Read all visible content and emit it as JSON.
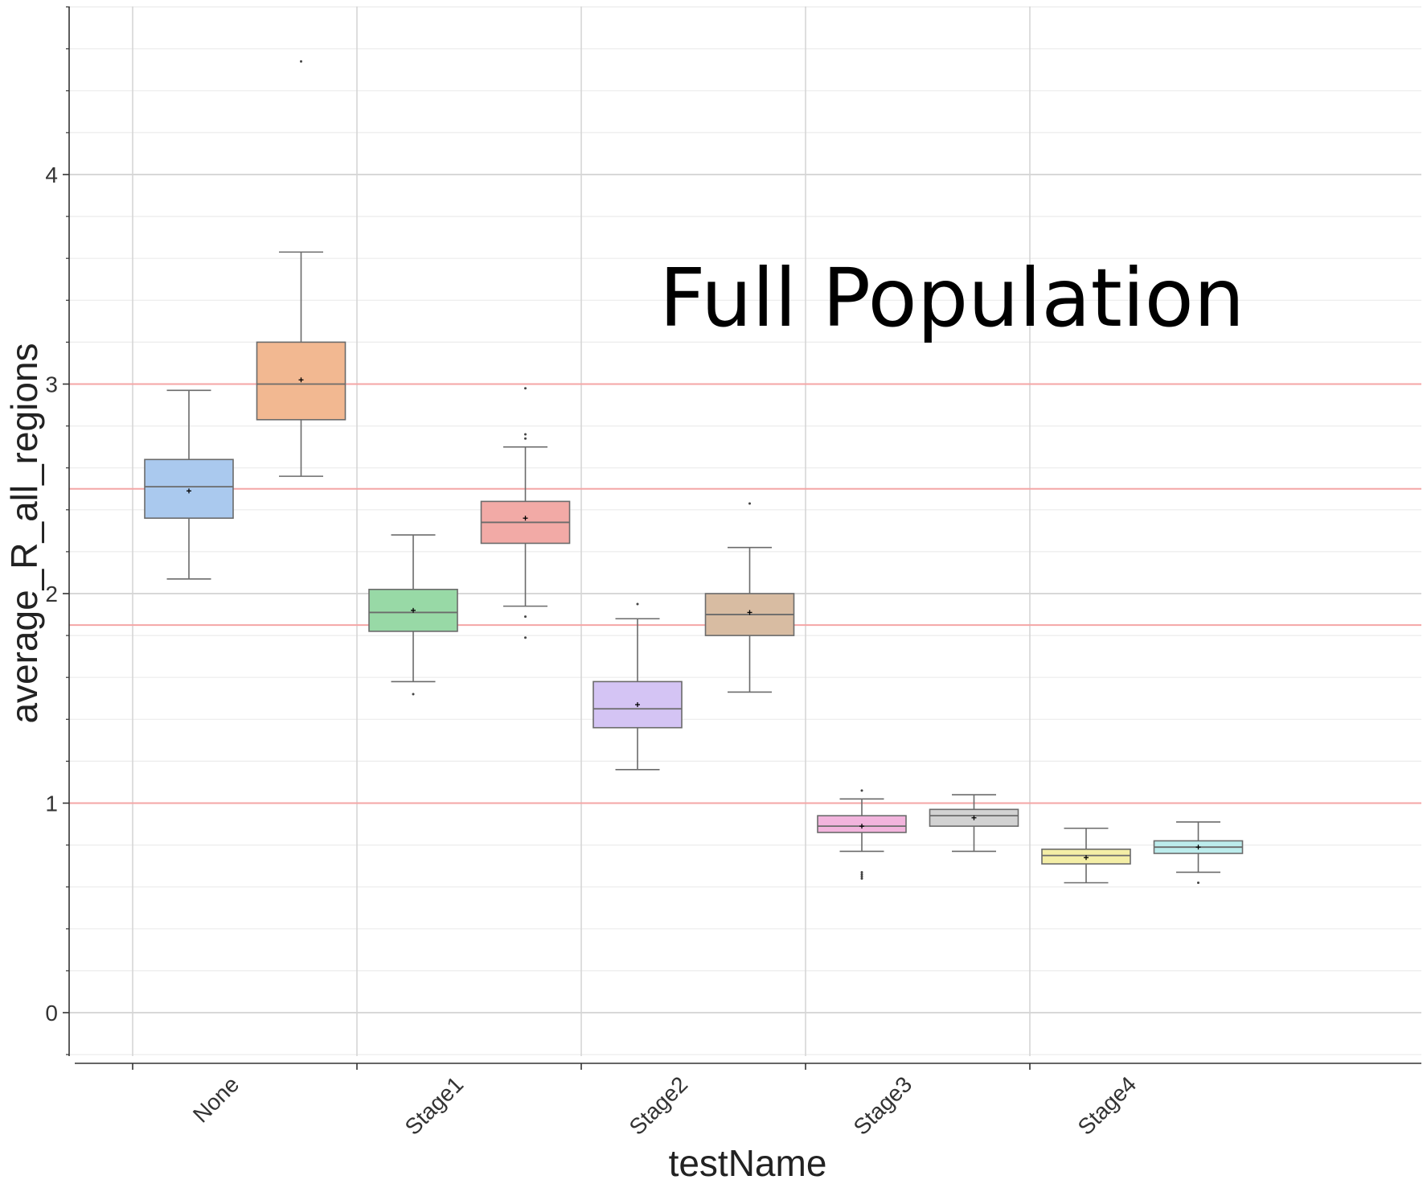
{
  "chart_data": {
    "type": "box",
    "annotation": "Full Population",
    "xlabel": "testName",
    "ylabel": "average_R_all_regions",
    "categories": [
      "None",
      "Stage1",
      "Stage2",
      "Stage3",
      "Stage4"
    ],
    "y_ticks": [
      0,
      1,
      2,
      3,
      4
    ],
    "ylim": [
      -0.2,
      4.8
    ],
    "grid": true,
    "reference_lines": [
      1.0,
      1.85,
      2.5,
      3.0
    ],
    "reference_line_color": "#f4a6a6",
    "boxes": [
      {
        "category": "None",
        "color": "#aac9ee",
        "whisker_low": 2.07,
        "q1": 2.36,
        "median": 2.51,
        "q3": 2.64,
        "whisker_high": 2.97,
        "mean": 2.49,
        "outliers": []
      },
      {
        "category": "None",
        "color": "#f2b891",
        "whisker_low": 2.56,
        "q1": 2.83,
        "median": 3.0,
        "q3": 3.2,
        "whisker_high": 3.63,
        "mean": 3.02,
        "outliers": [
          4.54
        ]
      },
      {
        "category": "Stage1",
        "color": "#98d9a6",
        "whisker_low": 1.58,
        "q1": 1.82,
        "median": 1.91,
        "q3": 2.02,
        "whisker_high": 2.28,
        "mean": 1.92,
        "outliers": [
          1.52
        ]
      },
      {
        "category": "Stage1",
        "color": "#f2aaa6",
        "whisker_low": 1.94,
        "q1": 2.24,
        "median": 2.34,
        "q3": 2.44,
        "whisker_high": 2.7,
        "mean": 2.36,
        "outliers": [
          2.98,
          2.76,
          2.74,
          1.89,
          1.79
        ]
      },
      {
        "category": "Stage2",
        "color": "#d4c4f4",
        "whisker_low": 1.16,
        "q1": 1.36,
        "median": 1.45,
        "q3": 1.58,
        "whisker_high": 1.88,
        "mean": 1.47,
        "outliers": [
          1.95
        ]
      },
      {
        "category": "Stage2",
        "color": "#d8bca2",
        "whisker_low": 1.53,
        "q1": 1.8,
        "median": 1.9,
        "q3": 2.0,
        "whisker_high": 2.22,
        "mean": 1.91,
        "outliers": [
          2.43
        ]
      },
      {
        "category": "Stage3",
        "color": "#f2b4dd",
        "whisker_low": 0.77,
        "q1": 0.86,
        "median": 0.89,
        "q3": 0.94,
        "whisker_high": 1.02,
        "mean": 0.89,
        "outliers": [
          1.06,
          0.67,
          0.66,
          0.65,
          0.64
        ]
      },
      {
        "category": "Stage3",
        "color": "#d2d2d2",
        "whisker_low": 0.77,
        "q1": 0.89,
        "median": 0.94,
        "q3": 0.97,
        "whisker_high": 1.04,
        "mean": 0.93,
        "outliers": []
      },
      {
        "category": "Stage4",
        "color": "#f4eea6",
        "whisker_low": 0.62,
        "q1": 0.71,
        "median": 0.75,
        "q3": 0.78,
        "whisker_high": 0.88,
        "mean": 0.74,
        "outliers": []
      },
      {
        "category": "Stage4",
        "color": "#bcecec",
        "whisker_low": 0.67,
        "q1": 0.76,
        "median": 0.79,
        "q3": 0.82,
        "whisker_high": 0.91,
        "mean": 0.79,
        "outliers": [
          0.62
        ]
      }
    ]
  }
}
